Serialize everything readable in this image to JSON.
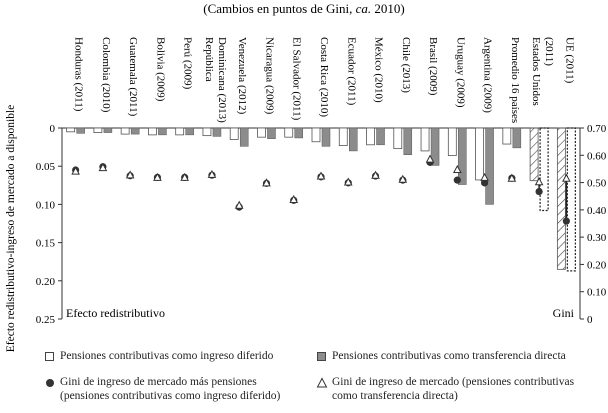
{
  "chart_data": {
    "type": "bar",
    "title": "(Cambios en puntos de Gini, ca. 2010)",
    "title_parts": [
      "(Cambios en puntos de Gini, ",
      "ca.",
      " 2010)"
    ],
    "ylabel_left": "Efecto redistributivo-ingreso de mercado a disponible",
    "left_axis_caption": "Efecto redistributivo",
    "right_axis_caption": "Gini",
    "ylim_left": [
      0,
      0.25
    ],
    "ylim_right": [
      0,
      0.7
    ],
    "left_ticks": [
      "0",
      "0.05",
      "0.10",
      "0.15",
      "0.20",
      "0.25"
    ],
    "right_ticks": [
      "0",
      "0.10",
      "0.20",
      "0.30",
      "0.40",
      "0.50",
      "0.60",
      "0.70"
    ],
    "categories": [
      [
        "Honduras (2011)"
      ],
      [
        "Colombia (2010)"
      ],
      [
        "Guatemala (2011)"
      ],
      [
        "Bolivia (2009)"
      ],
      [
        "Perú (2009)"
      ],
      [
        "República",
        "Dominicana (2013)"
      ],
      [
        "Venezuela (2012)"
      ],
      [
        "Nicaragua (2009)"
      ],
      [
        "El Salvador (2011)"
      ],
      [
        "Costa Rica (2010)"
      ],
      [
        "Ecuador (2011)"
      ],
      [
        "México (2010)"
      ],
      [
        "Chile (2013)"
      ],
      [
        "Brasil (2009)"
      ],
      [
        "Uruguay (2009)"
      ],
      [
        "Argentina (2009)"
      ],
      [
        "Promedio 16 países"
      ],
      [
        "Estados Unidos",
        "(2011)"
      ],
      [
        "UE (2011)"
      ]
    ],
    "series": [
      {
        "name": "Pensiones contributivas como ingreso diferido",
        "axis": "left",
        "kind": "bar",
        "values": [
          0.005,
          0.006,
          0.008,
          0.009,
          0.009,
          0.01,
          0.015,
          0.012,
          0.012,
          0.018,
          0.023,
          0.022,
          0.027,
          0.03,
          0.036,
          0.068,
          0.021,
          0.069,
          0.185
        ]
      },
      {
        "name": "Pensiones contributivas como transferencia directa",
        "axis": "left",
        "kind": "bar",
        "values": [
          0.007,
          0.006,
          0.008,
          0.009,
          0.009,
          0.011,
          0.024,
          0.014,
          0.013,
          0.024,
          0.03,
          0.022,
          0.035,
          0.049,
          0.074,
          0.1,
          0.026,
          0.108,
          0.187
        ]
      },
      {
        "name": "Gini de ingreso de mercado más pensiones (pensiones contributivas como ingreso diferido)",
        "axis": "right",
        "kind": "dot",
        "values": [
          0.546,
          0.558,
          0.525,
          0.519,
          0.519,
          0.527,
          0.41,
          0.497,
          0.435,
          0.521,
          0.499,
          0.524,
          0.509,
          0.574,
          0.509,
          0.499,
          0.516,
          0.467,
          0.359
        ]
      },
      {
        "name": "Gini de ingreso de mercado (pensiones contributivas como transferencia directa)",
        "axis": "right",
        "kind": "triangle",
        "values": [
          0.542,
          0.555,
          0.528,
          0.519,
          0.519,
          0.53,
          0.417,
          0.499,
          0.438,
          0.524,
          0.502,
          0.527,
          0.512,
          0.586,
          0.548,
          0.519,
          0.516,
          0.503,
          0.516
        ]
      }
    ],
    "legend": [
      {
        "symbol": "open-square",
        "lines": [
          "Pensiones contributivas como ingreso diferido"
        ]
      },
      {
        "symbol": "gray-square",
        "lines": [
          "Pensiones contributivas como transferencia directa"
        ]
      },
      {
        "symbol": "dot",
        "lines": [
          "Gini de ingreso de mercado más pensiones",
          "(pensiones contributivas como ingreso diferido)"
        ]
      },
      {
        "symbol": "triangle",
        "lines": [
          "Gini de ingreso de mercado (pensiones contributivas",
          "como transferencia directa)"
        ]
      }
    ]
  },
  "colors": {
    "bar_open": "#ffffff",
    "bar_gray": "#8c8c8c",
    "dot": "#333333",
    "triangle_stroke": "#333333",
    "axis": "#333333",
    "bar_stroke": "#555555"
  }
}
